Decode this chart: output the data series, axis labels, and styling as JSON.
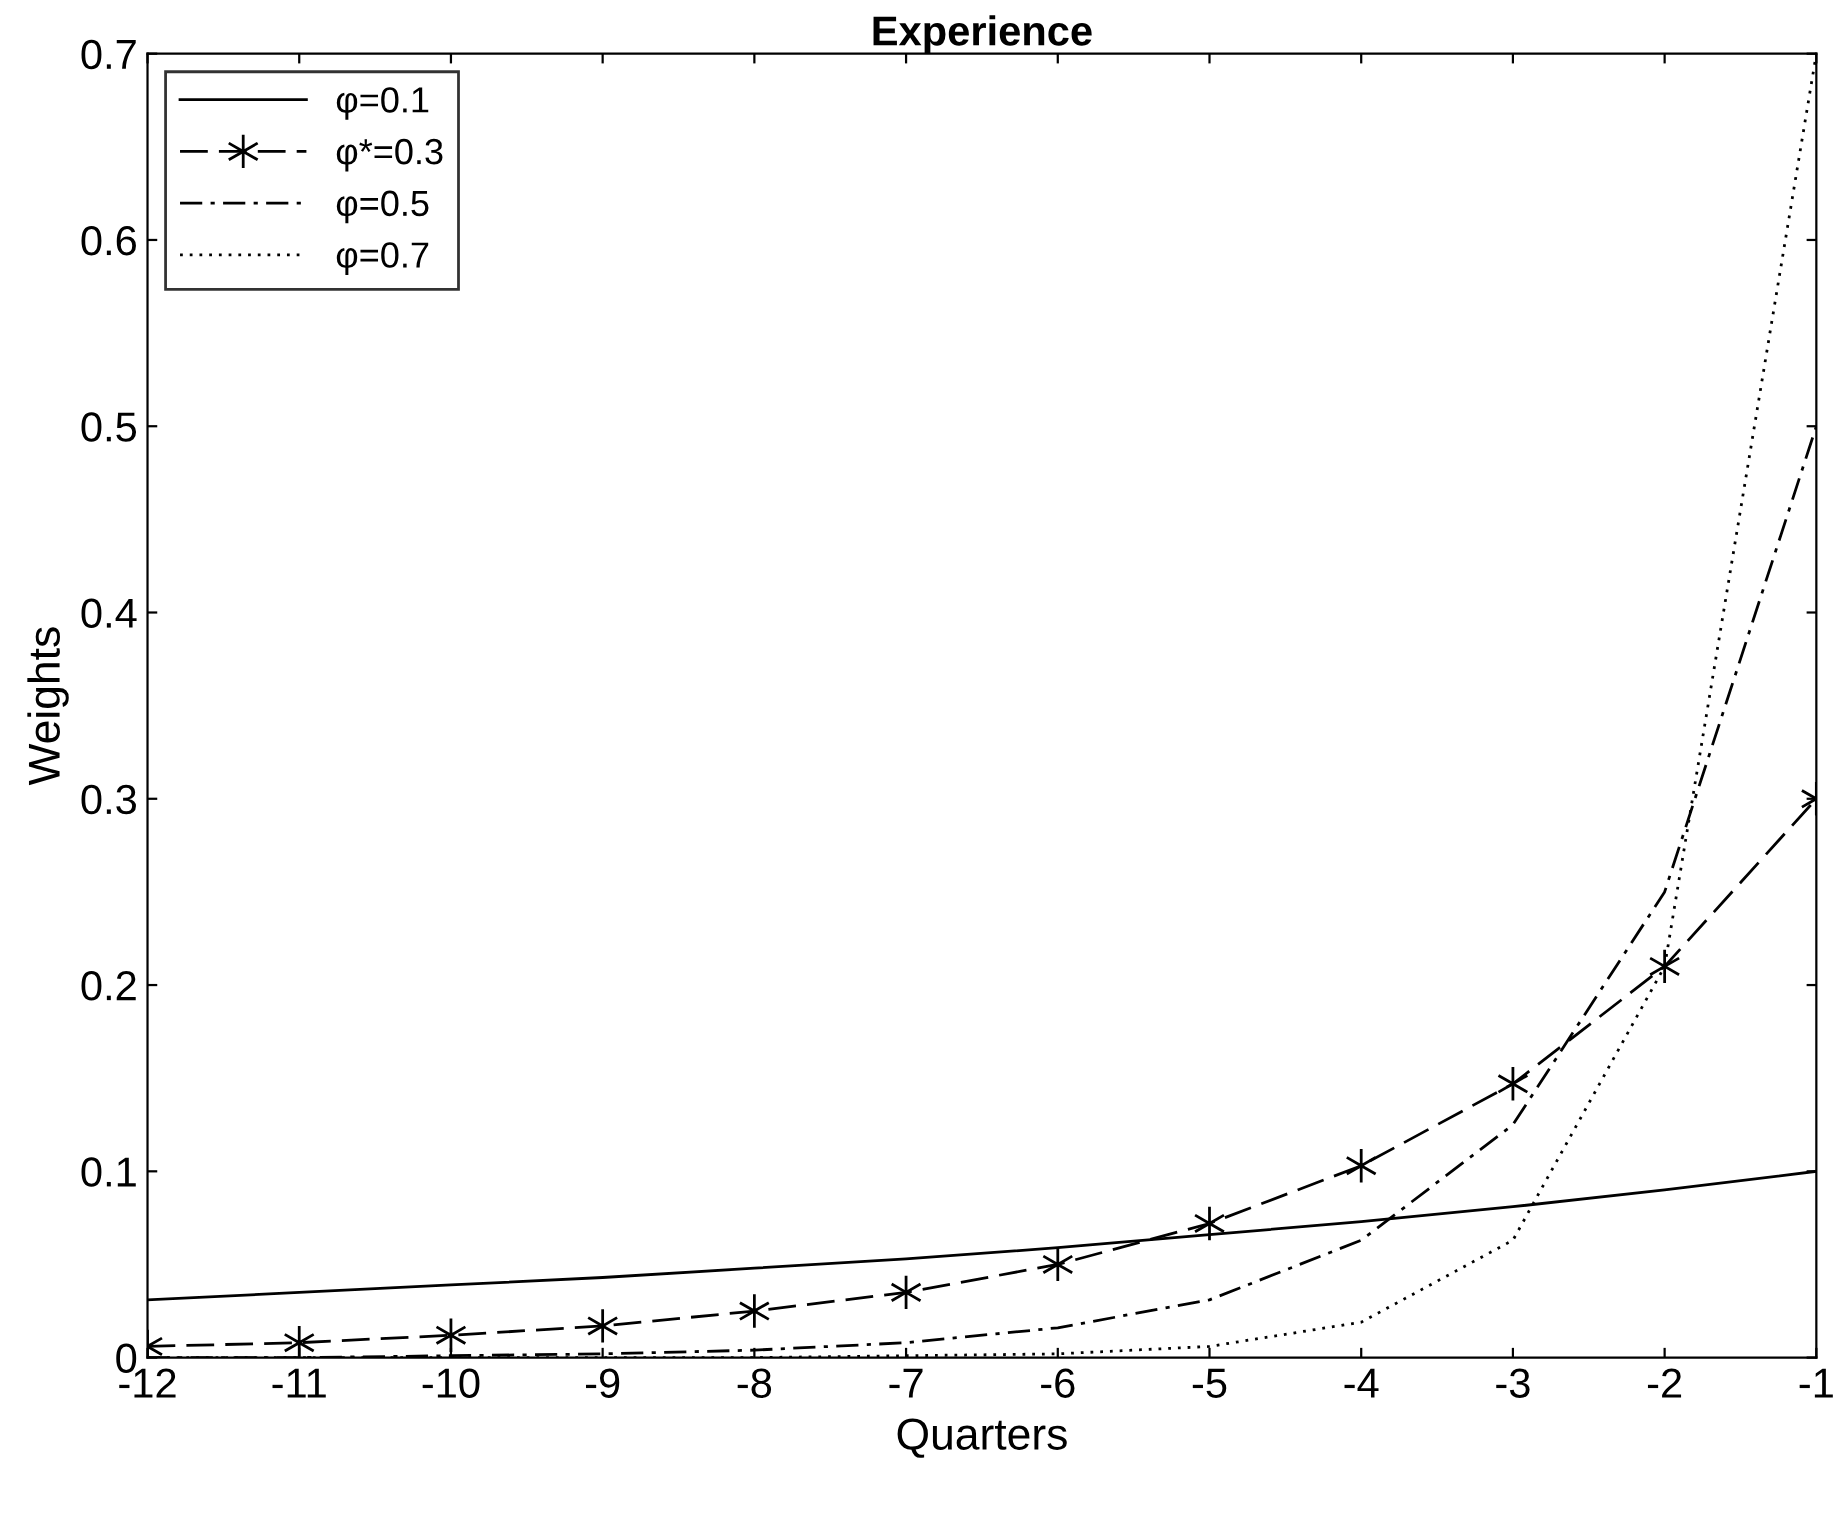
{
  "chart_data": {
    "type": "line",
    "title": "Experience",
    "xlabel": "Quarters",
    "ylabel": "Weights",
    "x": [
      -12,
      -11,
      -10,
      -9,
      -8,
      -7,
      -6,
      -5,
      -4,
      -3,
      -2,
      -1
    ],
    "series": [
      {
        "name": "φ=0.1",
        "color": "#000000",
        "line_style": "solid",
        "marker": "none",
        "values": [
          0.031,
          0.035,
          0.039,
          0.043,
          0.048,
          0.053,
          0.059,
          0.066,
          0.073,
          0.081,
          0.09,
          0.1
        ]
      },
      {
        "name": "φ*=0.3",
        "color": "#000000",
        "line_style": "dashed",
        "marker": "cross",
        "values": [
          0.006,
          0.008,
          0.012,
          0.017,
          0.025,
          0.035,
          0.05,
          0.072,
          0.103,
          0.147,
          0.21,
          0.3
        ]
      },
      {
        "name": "φ=0.5",
        "color": "#000000",
        "line_style": "dashdot",
        "marker": "none",
        "values": [
          0,
          0,
          0.001,
          0.002,
          0.004,
          0.008,
          0.016,
          0.031,
          0.063,
          0.125,
          0.25,
          0.5
        ]
      },
      {
        "name": "φ=0.7",
        "color": "#000000",
        "line_style": "dotted",
        "marker": "none",
        "values": [
          0,
          0,
          0,
          0,
          0,
          0.001,
          0.002,
          0.006,
          0.019,
          0.063,
          0.21,
          0.7
        ]
      }
    ],
    "xlim": [
      -12,
      -1
    ],
    "xticks": [
      -12,
      -11,
      -10,
      -9,
      -8,
      -7,
      -6,
      -5,
      -4,
      -3,
      -2,
      -1
    ],
    "ylim": [
      0,
      0.7
    ],
    "yticks": [
      0,
      0.1,
      0.2,
      0.3,
      0.4,
      0.5,
      0.6,
      0.7
    ],
    "grid": false,
    "legend": "top left"
  }
}
